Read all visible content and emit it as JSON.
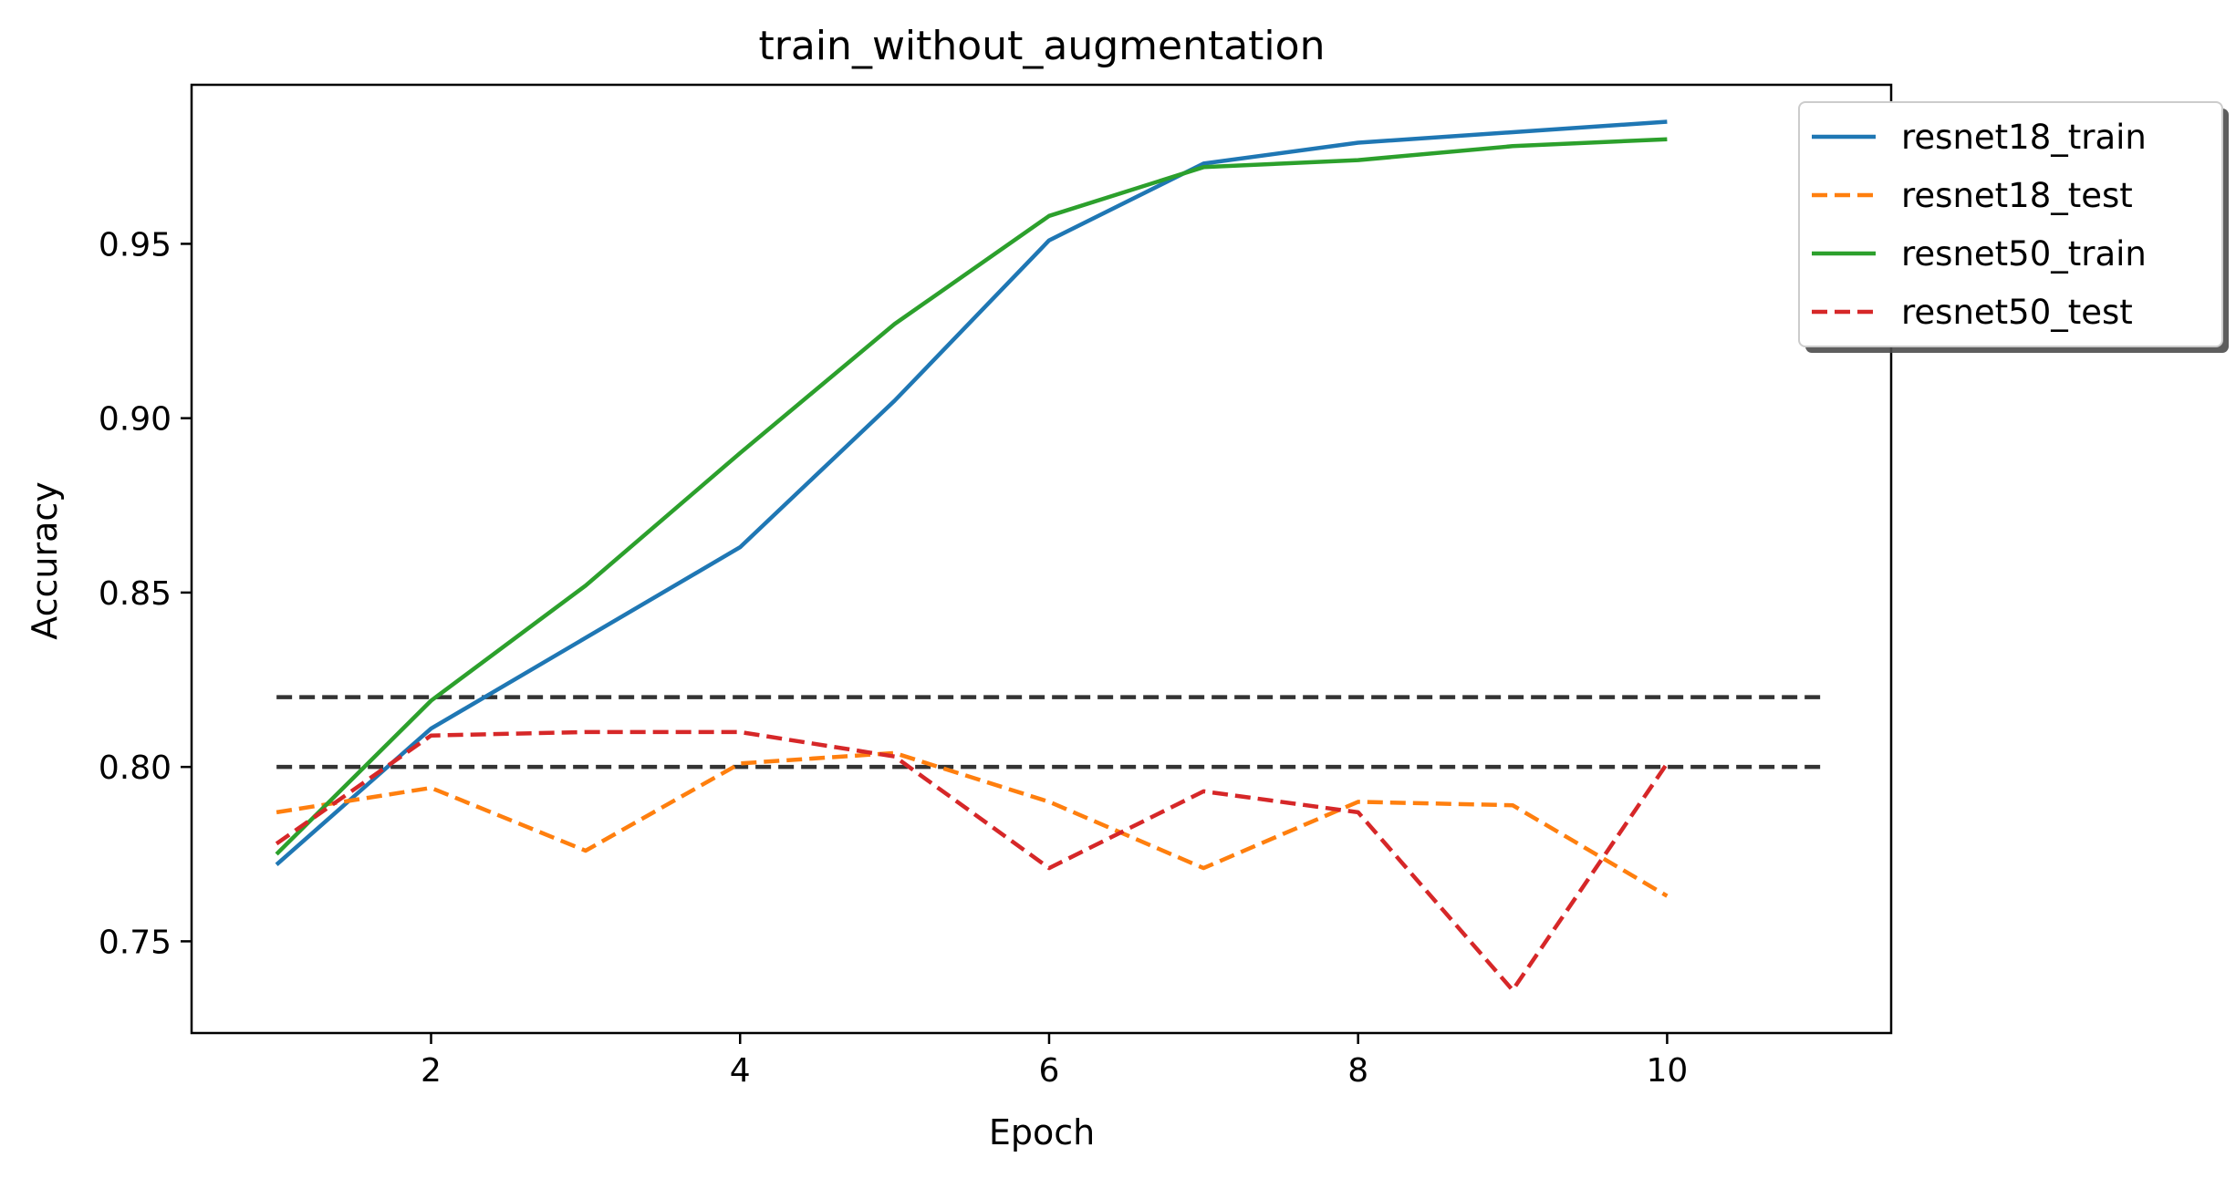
{
  "chart_data": {
    "type": "line",
    "title": "train_without_augmentation",
    "xlabel": "Epoch",
    "ylabel": "Accuracy",
    "xlim": [
      0.45,
      11.45
    ],
    "ylim": [
      0.7237,
      0.9956
    ],
    "xticks": [
      2,
      4,
      6,
      8,
      10
    ],
    "yticks": [
      0.75,
      0.8,
      0.85,
      0.9,
      0.95
    ],
    "xtick_labels": [
      "2",
      "4",
      "6",
      "8",
      "10"
    ],
    "ytick_labels": [
      "0.75",
      "0.80",
      "0.85",
      "0.90",
      "0.95"
    ],
    "grid": false,
    "legend_position": "upper-right-outside",
    "x": [
      1,
      2,
      3,
      4,
      5,
      6,
      7,
      8,
      9,
      10
    ],
    "series": [
      {
        "name": "resnet18_train",
        "color": "#1f77b4",
        "dash": "solid",
        "values": [
          0.772,
          0.811,
          0.837,
          0.863,
          0.905,
          0.951,
          0.973,
          0.979,
          0.982,
          0.985
        ]
      },
      {
        "name": "resnet18_test",
        "color": "#ff7f0e",
        "dash": "dashed",
        "values": [
          0.787,
          0.794,
          0.776,
          0.801,
          0.804,
          0.79,
          0.771,
          0.79,
          0.789,
          0.763
        ]
      },
      {
        "name": "resnet50_train",
        "color": "#2ca02c",
        "dash": "solid",
        "values": [
          0.775,
          0.819,
          0.852,
          0.89,
          0.927,
          0.958,
          0.972,
          0.974,
          0.978,
          0.98
        ]
      },
      {
        "name": "resnet50_test",
        "color": "#d62728",
        "dash": "dashed",
        "values": [
          0.778,
          0.809,
          0.81,
          0.81,
          0.803,
          0.771,
          0.793,
          0.787,
          0.736,
          0.801
        ]
      }
    ],
    "reference_lines": [
      {
        "y": 0.8,
        "x_range": [
          1,
          11
        ],
        "color": "#333333",
        "dash": "dashed"
      },
      {
        "y": 0.82,
        "x_range": [
          1,
          11
        ],
        "color": "#333333",
        "dash": "dashed"
      }
    ]
  }
}
